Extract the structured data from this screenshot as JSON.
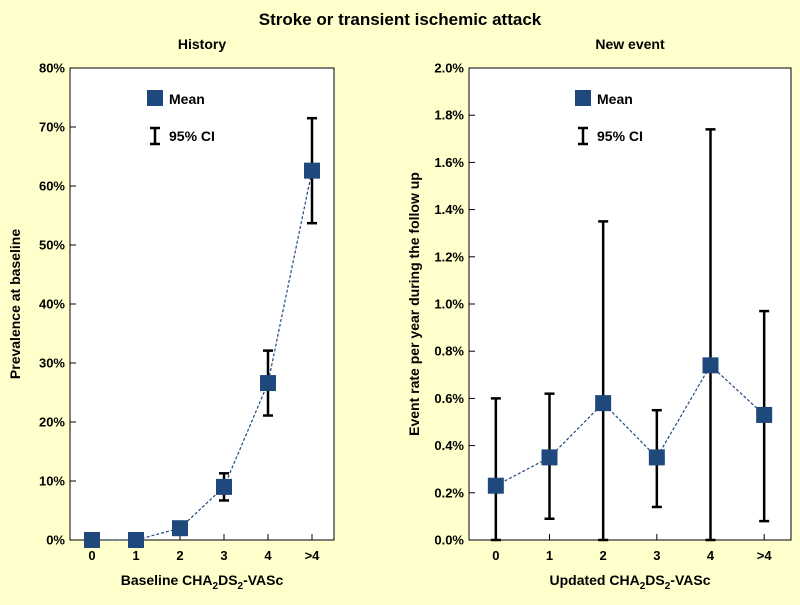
{
  "figure_title": "Stroke or transient ischemic attack",
  "colors": {
    "background": "#ffffcc",
    "plot_area": "#ffffff",
    "marker": "#1f497d",
    "error_bar": "#000000",
    "line": "#1f497d"
  },
  "chart_data": [
    {
      "type": "scatter",
      "title": "History",
      "xlabel_main": "Baseline CHA",
      "xlabel_sub1": "2",
      "xlabel_mid": "DS",
      "xlabel_sub2": "2",
      "xlabel_end": "-VASc",
      "ylabel": "Prevalence at baseline",
      "categories": [
        "0",
        "1",
        "2",
        "3",
        "4",
        ">4"
      ],
      "ylim": [
        0,
        80
      ],
      "yticks": [
        0,
        10,
        20,
        30,
        40,
        50,
        60,
        70,
        80
      ],
      "ytick_labels": [
        "0%",
        "10%",
        "20%",
        "30%",
        "40%",
        "50%",
        "60%",
        "70%",
        "80%"
      ],
      "series": [
        {
          "name": "Mean",
          "values": [
            0,
            0,
            2.0,
            9.0,
            26.6,
            62.6
          ],
          "ci_low": [
            0,
            0,
            2.0,
            6.7,
            21.1,
            53.7
          ],
          "ci_high": [
            0,
            0,
            2.0,
            11.3,
            32.1,
            71.5
          ]
        }
      ],
      "legend": {
        "mean_label": "Mean",
        "ci_label": "95% CI",
        "position": "top-center"
      }
    },
    {
      "type": "scatter",
      "title": "New event",
      "xlabel_main": "Updated CHA",
      "xlabel_sub1": "2",
      "xlabel_mid": "DS",
      "xlabel_sub2": "2",
      "xlabel_end": "-VASc",
      "ylabel": "Event rate per year during the follow up",
      "categories": [
        "0",
        "1",
        "2",
        "3",
        "4",
        ">4"
      ],
      "ylim": [
        0,
        2.0
      ],
      "yticks": [
        0,
        0.2,
        0.4,
        0.6,
        0.8,
        1.0,
        1.2,
        1.4,
        1.6,
        1.8,
        2.0
      ],
      "ytick_labels": [
        "0.0%",
        "0.2%",
        "0.4%",
        "0.6%",
        "0.8%",
        "1.0%",
        "1.2%",
        "1.4%",
        "1.6%",
        "1.8%",
        "2.0%"
      ],
      "series": [
        {
          "name": "Mean",
          "values": [
            0.23,
            0.35,
            0.58,
            0.35,
            0.74,
            0.53
          ],
          "ci_low": [
            0.0,
            0.09,
            0.0,
            0.14,
            0.0,
            0.08
          ],
          "ci_high": [
            0.6,
            0.62,
            1.35,
            0.55,
            1.74,
            0.97
          ]
        }
      ],
      "legend": {
        "mean_label": "Mean",
        "ci_label": "95% CI",
        "position": "top-center"
      }
    }
  ]
}
